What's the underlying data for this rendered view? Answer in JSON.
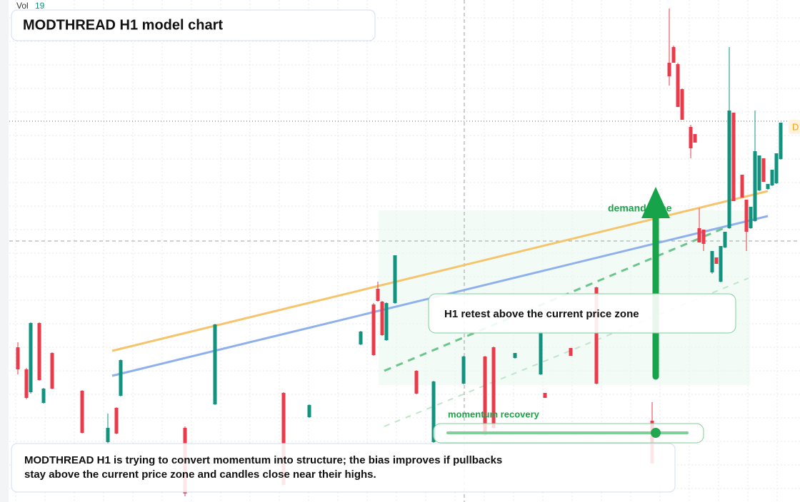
{
  "chart_data": {
    "type": "candlestick",
    "title": "MODTHREAD H1 model chart",
    "vol_label": "Vol",
    "vol_value": 19,
    "zone_label": "demand zone",
    "retest_label": "H1 retest above the current price zone",
    "momentum_label": "momentum recovery",
    "note": "MODTHREAD H1 is trying to convert momentum into structure; the bias improves if pullbacks stay above the current price zone and candles close near their highs.",
    "edge_label": "D",
    "up_color": "#12937f",
    "down_color": "#ec3a4b",
    "xlim": [
      0,
      185
    ],
    "ylim": [
      0,
      704
    ],
    "x": [
      2,
      4,
      5,
      7,
      8,
      10,
      17,
      23,
      25,
      26,
      41,
      48,
      64,
      70,
      82,
      85,
      86,
      87,
      88,
      90,
      95,
      99,
      106,
      111,
      113,
      118,
      124,
      125,
      131,
      137,
      150,
      154,
      155,
      156,
      157,
      159,
      160,
      161,
      162,
      164,
      165,
      166,
      167,
      168,
      169,
      171,
      172,
      173,
      174,
      175,
      176,
      177,
      178,
      179,
      180
    ],
    "open": [
      217,
      186,
      154,
      251,
      139,
      209,
      156,
      84,
      132,
      149,
      104,
      137,
      153,
      119,
      221,
      277,
      299,
      281,
      227,
      279,
      184,
      84,
      166,
      204,
      217,
      202,
      179,
      153,
      216,
      301,
      114,
      616,
      638,
      614,
      579,
      526,
      516,
      384,
      382,
      322,
      343,
      309,
      357,
      384,
      546,
      459,
      424,
      384,
      394,
      437,
      482,
      439,
      444,
      447,
      481
    ],
    "high": [
      224,
      188,
      252,
      252,
      160,
      210,
      157,
      124,
      133,
      200,
      106,
      250,
      154,
      137,
      240,
      279,
      309,
      282,
      280,
      346,
      185,
      170,
      205,
      205,
      218,
      209,
      239,
      153,
      216,
      302,
      140,
      692,
      640,
      616,
      580,
      529,
      516,
      412,
      382,
      352,
      343,
      359,
      379,
      638,
      546,
      459,
      424,
      414,
      549,
      486,
      482,
      446,
      466,
      489,
      532
    ],
    "low": [
      179,
      144,
      152,
      170,
      138,
      158,
      96,
      82,
      95,
      148,
      8,
      136,
      23,
      118,
      220,
      205,
      281,
      233,
      226,
      278,
      151,
      83,
      165,
      93,
      103,
      201,
      178,
      146,
      205,
      165,
      54,
      584,
      616,
      554,
      536,
      482,
      504,
      364,
      352,
      320,
      334,
      308,
      356,
      383,
      422,
      427,
      352,
      383,
      393,
      436,
      449,
      438,
      443,
      446,
      480
    ],
    "close": [
      186,
      146,
      251,
      171,
      159,
      159,
      97,
      104,
      96,
      199,
      12,
      249,
      24,
      136,
      239,
      206,
      282,
      234,
      279,
      346,
      152,
      169,
      204,
      94,
      104,
      209,
      239,
      146,
      205,
      166,
      54,
      597,
      616,
      554,
      536,
      496,
      504,
      364,
      362,
      352,
      334,
      359,
      379,
      549,
      422,
      427,
      379,
      414,
      492,
      486,
      449,
      446,
      466,
      489,
      532
    ]
  }
}
